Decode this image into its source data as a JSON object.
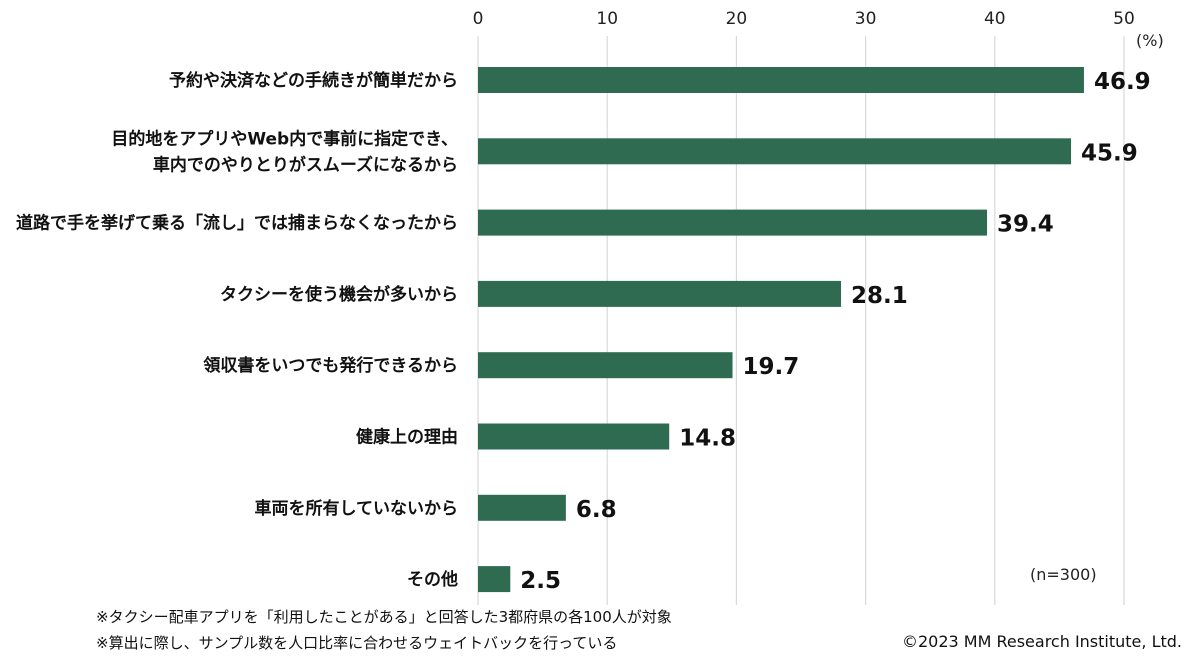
{
  "chart_data": {
    "type": "bar",
    "orientation": "horizontal",
    "categories": [
      [
        "予約や決済などの手続きが簡単だから"
      ],
      [
        "目的地をアプリやWeb内で事前に指定でき、",
        "車内でのやりとりがスムーズになるから"
      ],
      [
        "道路で手を挙げて乗る「流し」では捕まらなくなったから"
      ],
      [
        "タクシーを使う機会が多いから"
      ],
      [
        "領収書をいつでも発行できるから"
      ],
      [
        "健康上の理由"
      ],
      [
        "車両を所有していないから"
      ],
      [
        "その他"
      ]
    ],
    "values": [
      46.9,
      45.9,
      39.4,
      28.1,
      19.7,
      14.8,
      6.8,
      2.5
    ],
    "value_labels": [
      "46.9",
      "45.9",
      "39.4",
      "28.1",
      "19.7",
      "14.8",
      "6.8",
      "2.5"
    ],
    "xlim": [
      0,
      50
    ],
    "xticks": [
      "0",
      "10",
      "20",
      "30",
      "40",
      "50"
    ],
    "xunit": "(%)",
    "sample_size": "(n=300)",
    "bar_color": "#2e6b51",
    "grid": true,
    "grid_color": "#d9d9d9",
    "axis_position": "top"
  },
  "notes": [
    "※タクシー配車アプリを「利用したことがある」と回答した3都府県の各100人が対象",
    "※算出に際し、サンプル数を人口比率に合わせるウェイトバックを行っている"
  ],
  "copyright": "©2023 MM Research Institute, Ltd."
}
